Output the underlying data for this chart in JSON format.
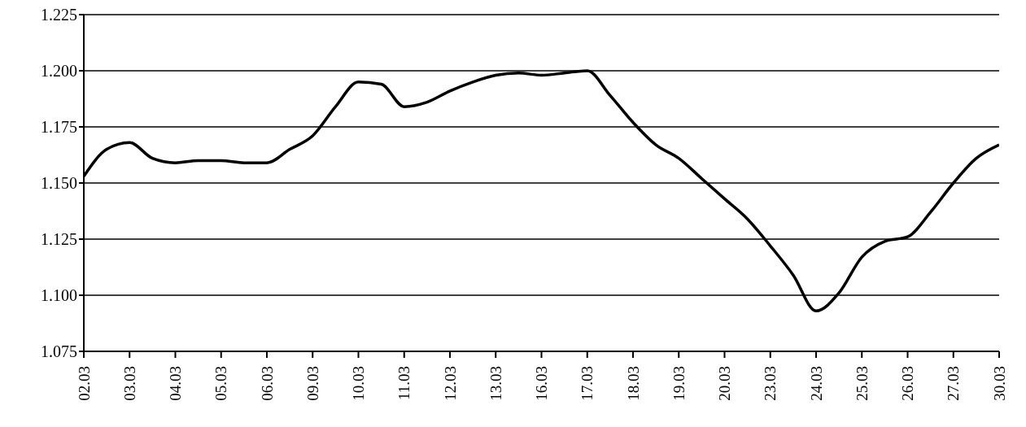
{
  "chart_data": {
    "type": "line",
    "categories": [
      "02.03",
      null,
      "03.03",
      null,
      "04.03",
      null,
      "05.03",
      null,
      "06.03",
      null,
      "09.03",
      null,
      "10.03",
      null,
      "11.03",
      null,
      "12.03",
      null,
      "13.03",
      null,
      "16.03",
      null,
      "17.03",
      null,
      "18.03",
      null,
      "19.03",
      null,
      "20.03",
      null,
      "23.03",
      null,
      "24.03",
      null,
      "25.03",
      null,
      "26.03",
      null,
      "27.03",
      null,
      "30.03"
    ],
    "series": [
      {
        "color": "#000000",
        "values": [
          1.153,
          1.165,
          1.168,
          1.161,
          1.159,
          1.16,
          1.16,
          1.159,
          1.159,
          1.165,
          1.171,
          1.184,
          1.195,
          1.194,
          1.184,
          1.186,
          1.191,
          1.195,
          1.198,
          1.199,
          1.198,
          1.199,
          1.2,
          1.189,
          1.177,
          1.167,
          1.161,
          1.152,
          1.143,
          1.134,
          1.122,
          1.109,
          1.093,
          1.101,
          1.117,
          1.124,
          1.126,
          1.137,
          1.15,
          1.161,
          1.167
        ]
      }
    ],
    "ylim": [
      1.075,
      1.225
    ],
    "yticks": [
      {
        "value": 1.075,
        "label": "1.075"
      },
      {
        "value": 1.1,
        "label": "1.100"
      },
      {
        "value": 1.125,
        "label": "1.125"
      },
      {
        "value": 1.15,
        "label": "1.150"
      },
      {
        "value": 1.175,
        "label": "1.175"
      },
      {
        "value": 1.2,
        "label": "1.200"
      },
      {
        "value": 1.225,
        "label": "1.225"
      }
    ],
    "grid": "y",
    "legend": false,
    "marker": "none",
    "line_style": "solid"
  }
}
